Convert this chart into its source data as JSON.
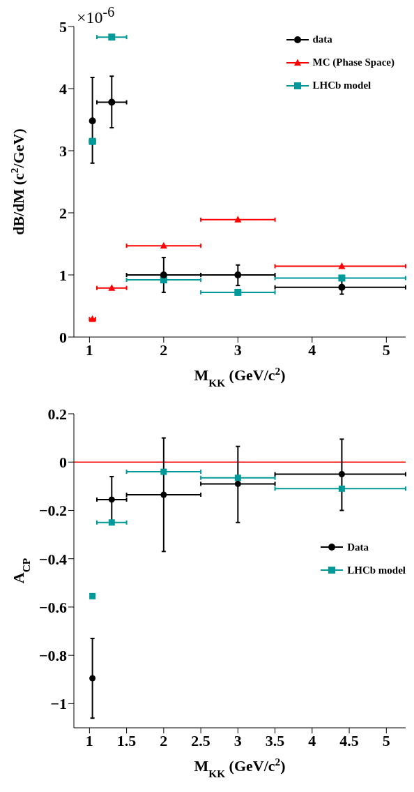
{
  "chart_data": [
    {
      "type": "scatter",
      "annotations": [
        "×10$^{-6}$"
      ],
      "xlabel": "M$_{KK}$ (GeV/c$^{2}$)",
      "ylabel": "dB/dM (c$^{2}$/GeV)",
      "x": [
        1.04,
        1.3,
        2,
        3,
        4.4
      ],
      "xlim": [
        0.79,
        5.26
      ],
      "xticks": [
        1,
        2,
        3,
        4,
        5
      ],
      "ylim": [
        0,
        5
      ],
      "yticks": [
        0,
        1,
        2,
        3,
        4,
        5
      ],
      "legend": "top right",
      "grid": false,
      "series": [
        {
          "name": "data",
          "color": "#000000",
          "marker": "circle",
          "values": [
            3.48,
            3.78,
            1.0,
            1.0,
            0.8
          ],
          "errors": [
            [
              2.8,
              4.18
            ],
            [
              3.37,
              4.2
            ],
            [
              0.72,
              1.28
            ],
            [
              0.83,
              1.16
            ],
            [
              0.69,
              0.93
            ]
          ],
          "xerrors": [
            [
              1.02,
              1.06
            ],
            [
              1.1,
              1.5
            ],
            [
              1.5,
              2.5
            ],
            [
              2.5,
              3.5
            ],
            [
              3.5,
              5.26
            ]
          ]
        },
        {
          "name": "MC (Phase Space)",
          "color": "#ff0000",
          "marker": "triangle",
          "values": [
            0.29,
            0.79,
            1.47,
            1.89,
            1.14
          ],
          "xerrors": [
            [
              1.0,
              1.08
            ],
            [
              1.1,
              1.5
            ],
            [
              1.5,
              2.5
            ],
            [
              2.5,
              3.5
            ],
            [
              3.5,
              5.26
            ]
          ]
        },
        {
          "name": "LHCb model",
          "color": "#009999",
          "marker": "square",
          "values": [
            3.15,
            4.83,
            0.92,
            0.72,
            0.95
          ],
          "xerrors": [
            [
              1.0,
              1.08
            ],
            [
              1.1,
              1.5
            ],
            [
              1.5,
              2.5
            ],
            [
              2.5,
              3.5
            ],
            [
              3.5,
              5.26
            ]
          ]
        }
      ]
    },
    {
      "type": "scatter",
      "xlabel": "M$_{KK}$ (GeV/c$^{2}$)",
      "ylabel": "A$_{CP}$",
      "x": [
        1.04,
        1.3,
        2,
        3,
        4.4
      ],
      "xlim": [
        0.79,
        5.26
      ],
      "xticks": [
        1,
        1.5,
        2,
        2.5,
        3,
        3.5,
        4,
        4.5,
        5
      ],
      "ylim": [
        -1.1,
        0.2
      ],
      "yticks": [
        0.2,
        0,
        {
          "value": -0.2,
          "label": "−0.2"
        },
        {
          "value": -0.4,
          "label": "−0.4"
        },
        {
          "value": -0.6,
          "label": "−0.6"
        },
        {
          "value": -0.8,
          "label": "−0.8"
        },
        {
          "value": -1,
          "label": "−1"
        }
      ],
      "legend": "right",
      "grid": false,
      "ref_lines": [
        {
          "axis": "y",
          "value": 0,
          "color": "#ff0000"
        }
      ],
      "series": [
        {
          "name": "Data",
          "color": "#000000",
          "marker": "circle",
          "values": [
            -0.895,
            -0.155,
            -0.135,
            -0.09,
            -0.05
          ],
          "errors": [
            [
              -1.06,
              -0.73
            ],
            [
              -0.255,
              -0.06
            ],
            [
              -0.37,
              0.1
            ],
            [
              -0.25,
              0.065
            ],
            [
              -0.2,
              0.095
            ]
          ],
          "xerrors": [
            [
              1.02,
              1.06
            ],
            [
              1.1,
              1.5
            ],
            [
              1.5,
              2.5
            ],
            [
              2.5,
              3.5
            ],
            [
              3.5,
              5.26
            ]
          ]
        },
        {
          "name": "LHCb model",
          "color": "#009999",
          "marker": "square",
          "values": [
            -0.555,
            -0.25,
            -0.04,
            -0.065,
            -0.11
          ],
          "xerrors": [
            [
              1.02,
              1.06
            ],
            [
              1.1,
              1.5
            ],
            [
              1.5,
              2.5
            ],
            [
              2.5,
              3.5
            ],
            [
              3.5,
              5.26
            ]
          ]
        }
      ]
    }
  ]
}
